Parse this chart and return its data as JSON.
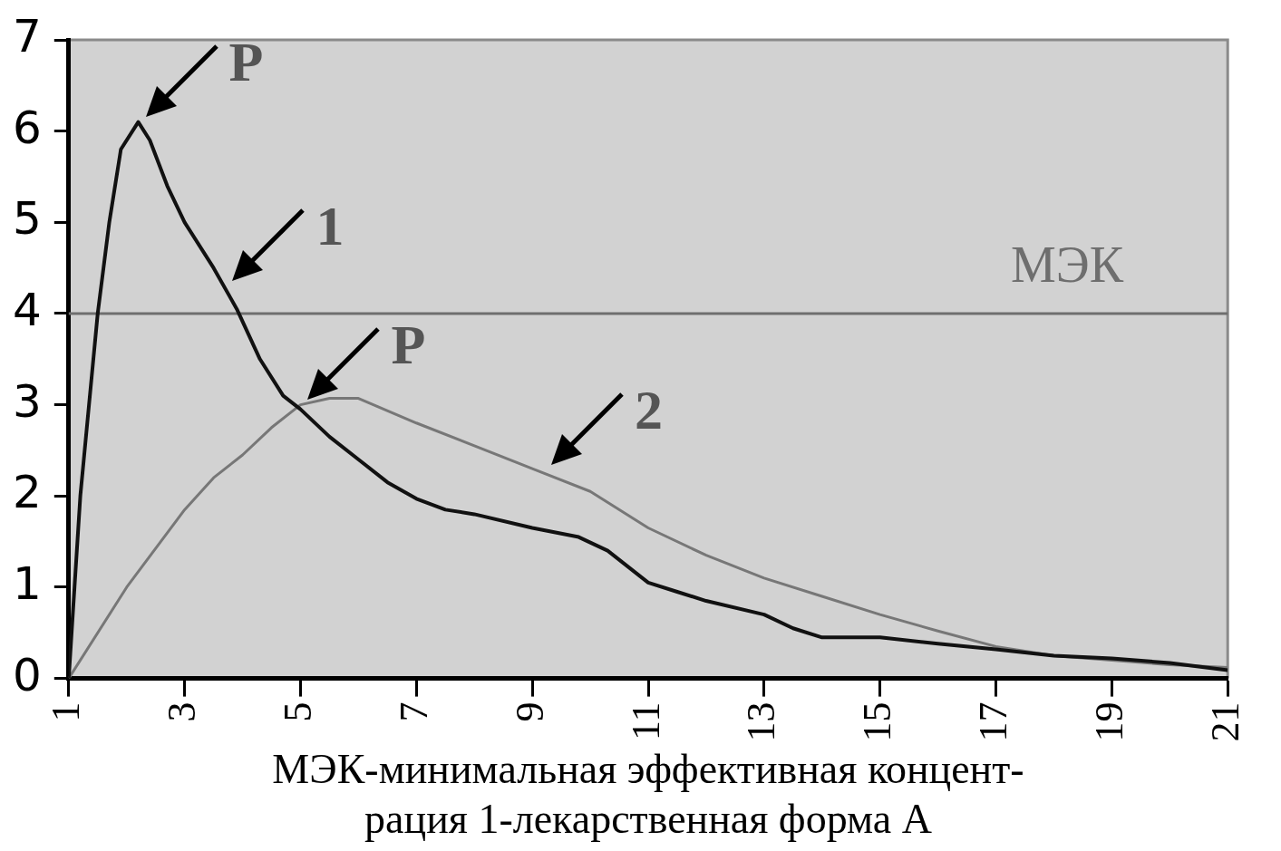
{
  "chart_data": {
    "type": "line",
    "xlabel": "МЭК-минимальная эффективная концент-\nрация 1-лекарственная форма А",
    "xlim": [
      1,
      21
    ],
    "xticks": [
      1,
      3,
      5,
      7,
      9,
      11,
      13,
      15,
      17,
      19,
      21
    ],
    "ylim": [
      0,
      7
    ],
    "yticks": [
      0,
      1,
      2,
      3,
      4,
      5,
      6,
      7
    ],
    "grid": false,
    "legend": false,
    "marker": "none",
    "line_style": "solid",
    "series": [
      {
        "color": "#111111",
        "x": [
          1,
          1.1,
          1.2,
          1.35,
          1.5,
          1.7,
          1.9,
          2.2,
          2.4,
          2.7,
          3,
          3.5,
          3.9,
          4.3,
          4.7,
          5,
          5.5,
          6,
          6.5,
          7,
          7.5,
          8,
          9,
          9.8,
          10.3,
          11,
          11.5,
          12,
          13,
          13.5,
          14,
          15,
          16,
          17,
          18,
          19,
          20,
          21
        ],
        "values": [
          0,
          1,
          2,
          3,
          4,
          5,
          5.8,
          6.1,
          5.9,
          5.4,
          5.0,
          4.5,
          4.05,
          3.5,
          3.1,
          2.95,
          2.65,
          2.4,
          2.15,
          1.97,
          1.85,
          1.8,
          1.65,
          1.55,
          1.4,
          1.05,
          0.95,
          0.85,
          0.7,
          0.55,
          0.45,
          0.45,
          0.38,
          0.32,
          0.25,
          0.22,
          0.17,
          0.09
        ]
      },
      {
        "color": "#777777",
        "x": [
          1,
          2,
          3,
          3.5,
          4,
          4.5,
          5,
          5.5,
          6,
          7,
          8,
          9,
          10,
          11,
          12,
          13,
          14,
          15,
          16,
          17,
          18,
          19,
          20,
          21
        ],
        "values": [
          0,
          1.0,
          1.85,
          2.2,
          2.45,
          2.75,
          3.0,
          3.07,
          3.07,
          2.8,
          2.55,
          2.3,
          2.05,
          1.65,
          1.35,
          1.1,
          0.9,
          0.7,
          0.52,
          0.35,
          0.25,
          0.2,
          0.15,
          0.12
        ]
      }
    ],
    "ref_lines": [
      {
        "axis": "y",
        "value": 4,
        "label": "МЭК",
        "color": "#6e6e6e"
      }
    ],
    "annotations": [
      {
        "text": "P",
        "x": 2.2,
        "y": 6.1
      },
      {
        "text": "1",
        "x": 3.7,
        "y": 4.3
      },
      {
        "text": "P",
        "x": 5,
        "y": 3
      },
      {
        "text": "2",
        "x": 9.2,
        "y": 2.28
      }
    ]
  }
}
